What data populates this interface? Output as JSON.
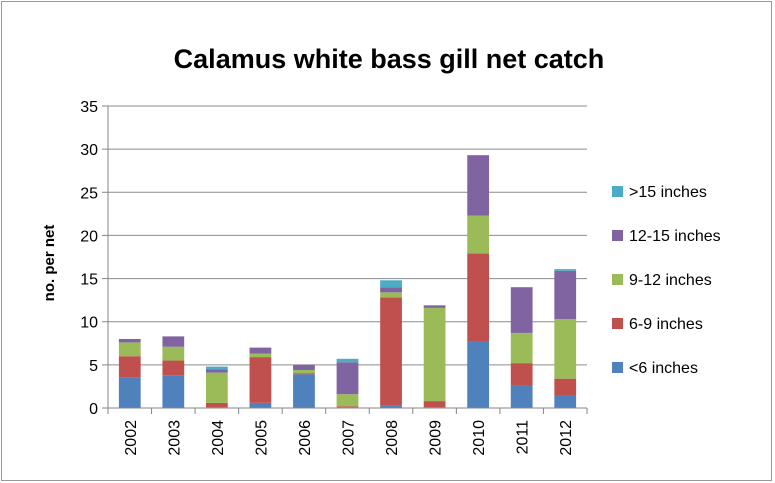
{
  "chart_data": {
    "type": "bar",
    "stacked": true,
    "title": "Calamus white bass gill net catch",
    "xlabel": "",
    "ylabel": "no. per net",
    "ylim": [
      0,
      35
    ],
    "yticks": [
      0,
      5,
      10,
      15,
      20,
      25,
      30,
      35
    ],
    "grid": true,
    "legend_position": "right",
    "categories": [
      "2002",
      "2003",
      "2004",
      "2005",
      "2006",
      "2007",
      "2008",
      "2009",
      "2010",
      "2011",
      "2012"
    ],
    "series": [
      {
        "name": "<6 inches",
        "color": "#4f81bd",
        "values": [
          3.5,
          3.8,
          0.1,
          0.6,
          3.9,
          0.1,
          0.3,
          0.1,
          7.7,
          2.6,
          1.4
        ]
      },
      {
        "name": "6-9 inches",
        "color": "#c0504d",
        "values": [
          2.5,
          1.7,
          0.5,
          5.3,
          0.1,
          0.1,
          12.5,
          0.7,
          10.2,
          2.6,
          2.0
        ]
      },
      {
        "name": "9-12 inches",
        "color": "#9bbb59",
        "values": [
          1.6,
          1.6,
          3.5,
          0.4,
          0.4,
          1.4,
          0.6,
          10.8,
          4.4,
          3.5,
          6.9
        ]
      },
      {
        "name": "12-15 inches",
        "color": "#8064a2",
        "values": [
          0.4,
          1.2,
          0.4,
          0.7,
          0.6,
          3.7,
          0.6,
          0.3,
          7.0,
          5.3,
          5.6
        ]
      },
      {
        "name": ">15 inches",
        "color": "#4bacc6",
        "values": [
          0.0,
          0.0,
          0.3,
          0.0,
          0.0,
          0.4,
          0.8,
          0.0,
          0.0,
          0.0,
          0.2
        ]
      }
    ]
  }
}
